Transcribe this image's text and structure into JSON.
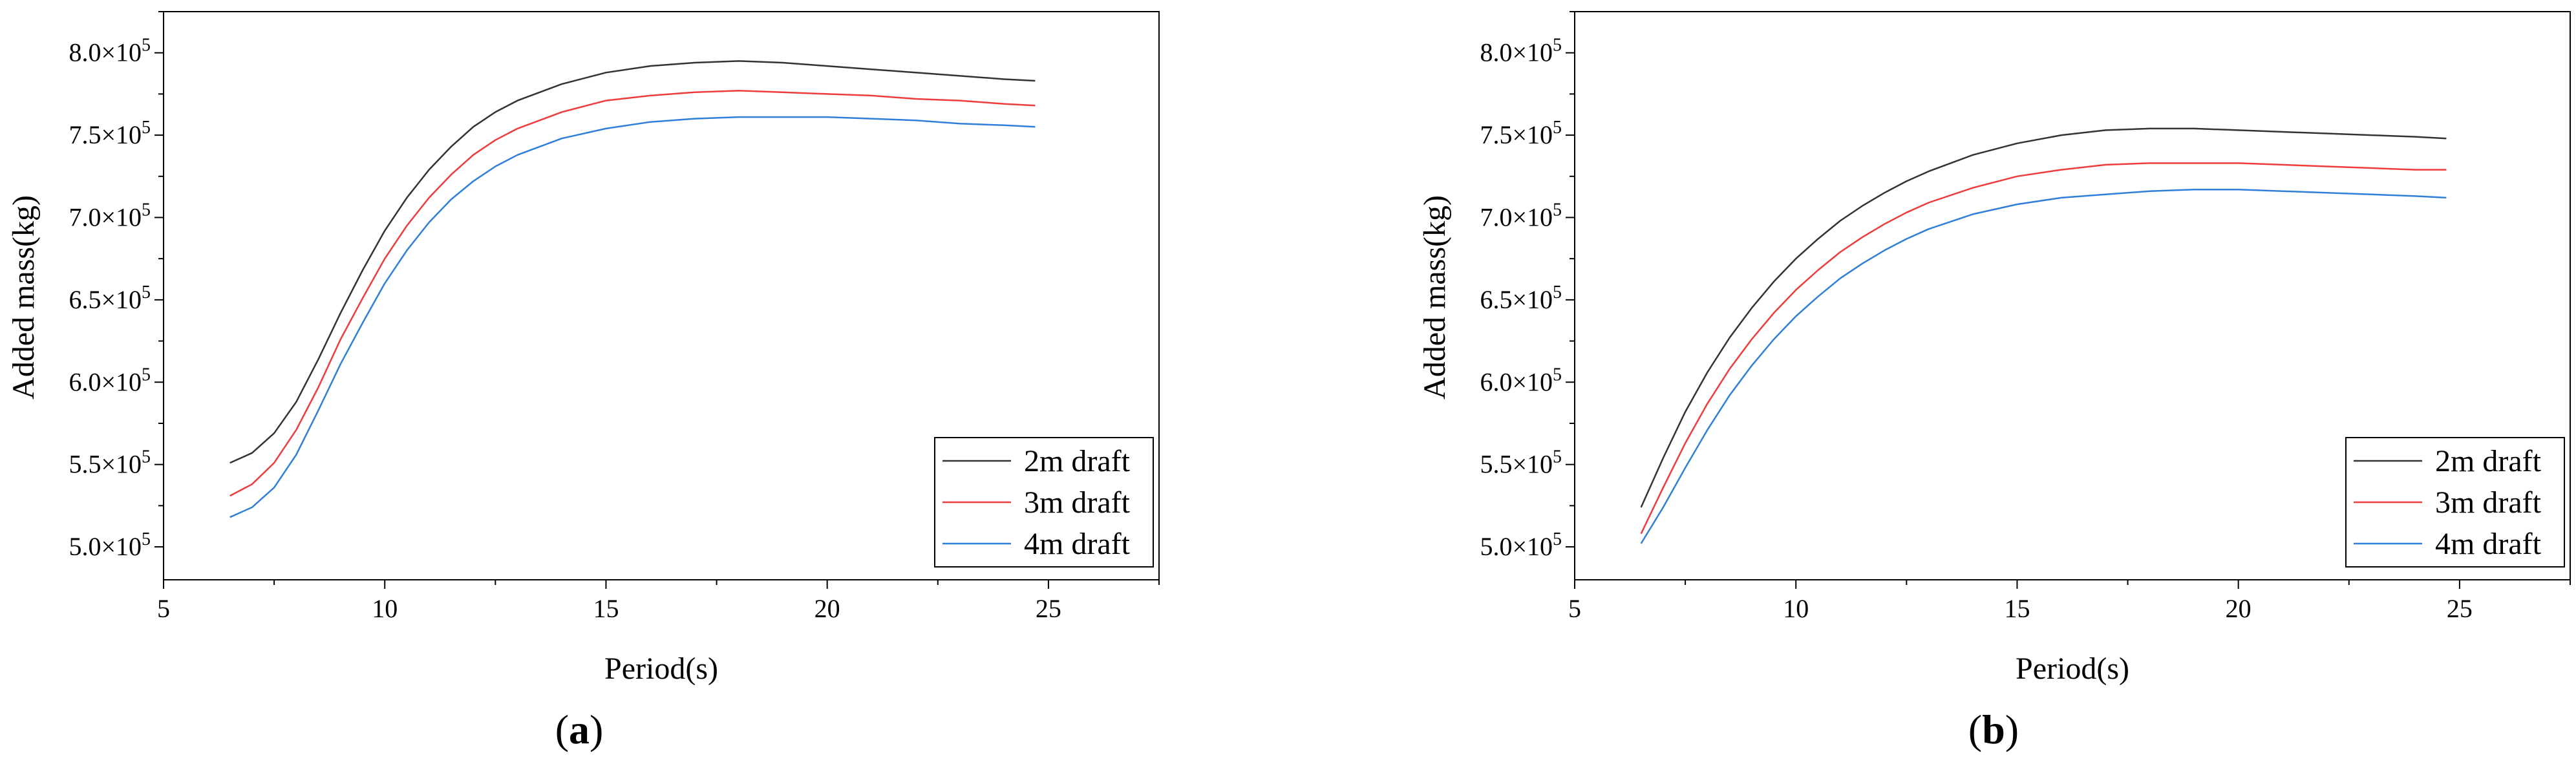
{
  "chart_data": [
    {
      "type": "line",
      "panel_label": "a",
      "xlabel": "Period(s)",
      "ylabel": "Added mass(kg)",
      "xlim": [
        5,
        27.5
      ],
      "ylim": [
        480000,
        825000
      ],
      "x_ticks": [
        5,
        10,
        15,
        20,
        25
      ],
      "x_tick_labels": [
        "5",
        "10",
        "15",
        "20",
        "25"
      ],
      "y_ticks": [
        500000,
        550000,
        600000,
        650000,
        700000,
        750000,
        800000
      ],
      "y_tick_labels": [
        {
          "mantissa": "5.0×10",
          "exponent": "5"
        },
        {
          "mantissa": "5.5×10",
          "exponent": "5"
        },
        {
          "mantissa": "6.0×10",
          "exponent": "5"
        },
        {
          "mantissa": "6.5×10",
          "exponent": "5"
        },
        {
          "mantissa": "7.0×10",
          "exponent": "5"
        },
        {
          "mantissa": "7.5×10",
          "exponent": "5"
        },
        {
          "mantissa": "8.0×10",
          "exponent": "5"
        }
      ],
      "grid": false,
      "legend_position": "bottom-right",
      "x": [
        6.5,
        7,
        7.5,
        8,
        8.5,
        9,
        9.5,
        10,
        10.5,
        11,
        11.5,
        12,
        12.5,
        13,
        14,
        15,
        16,
        17,
        18,
        19,
        20,
        21,
        22,
        23,
        24,
        24.7
      ],
      "series": [
        {
          "name": "2m draft",
          "color": "#333333",
          "values": [
            551000,
            557000,
            569000,
            588000,
            614000,
            642000,
            668000,
            692000,
            712000,
            729000,
            743000,
            755000,
            764000,
            771000,
            781000,
            788000,
            792000,
            794000,
            795000,
            794000,
            792000,
            790000,
            788000,
            786000,
            784000,
            783000
          ]
        },
        {
          "name": "3m draft",
          "color": "#ee3b3b",
          "values": [
            531000,
            538000,
            551000,
            571000,
            597000,
            626000,
            651000,
            675000,
            695000,
            712000,
            726000,
            738000,
            747000,
            754000,
            764000,
            771000,
            774000,
            776000,
            777000,
            776000,
            775000,
            774000,
            772000,
            771000,
            769000,
            768000
          ]
        },
        {
          "name": "4m draft",
          "color": "#2f7fd8",
          "values": [
            518000,
            524000,
            536000,
            556000,
            583000,
            611000,
            636000,
            660000,
            680000,
            697000,
            711000,
            722000,
            731000,
            738000,
            748000,
            754000,
            758000,
            760000,
            761000,
            761000,
            761000,
            760000,
            759000,
            757000,
            756000,
            755000
          ]
        }
      ]
    },
    {
      "type": "line",
      "panel_label": "b",
      "xlabel": "Period(s)",
      "ylabel": "Added mass(kg)",
      "xlim": [
        5,
        27.5
      ],
      "ylim": [
        480000,
        825000
      ],
      "x_ticks": [
        5,
        10,
        15,
        20,
        25
      ],
      "x_tick_labels": [
        "5",
        "10",
        "15",
        "20",
        "25"
      ],
      "y_ticks": [
        500000,
        550000,
        600000,
        650000,
        700000,
        750000,
        800000
      ],
      "y_tick_labels": [
        {
          "mantissa": "5.0×10",
          "exponent": "5"
        },
        {
          "mantissa": "5.5×10",
          "exponent": "5"
        },
        {
          "mantissa": "6.0×10",
          "exponent": "5"
        },
        {
          "mantissa": "6.5×10",
          "exponent": "5"
        },
        {
          "mantissa": "7.0×10",
          "exponent": "5"
        },
        {
          "mantissa": "7.5×10",
          "exponent": "5"
        },
        {
          "mantissa": "8.0×10",
          "exponent": "5"
        }
      ],
      "grid": false,
      "legend_position": "bottom-right",
      "x": [
        6.5,
        7,
        7.5,
        8,
        8.5,
        9,
        9.5,
        10,
        10.5,
        11,
        11.5,
        12,
        12.5,
        13,
        14,
        15,
        16,
        17,
        18,
        19,
        20,
        21,
        22,
        23,
        24,
        24.7
      ],
      "series": [
        {
          "name": "2m draft",
          "color": "#333333",
          "values": [
            524000,
            554000,
            582000,
            606000,
            627000,
            645000,
            661000,
            675000,
            687000,
            698000,
            707000,
            715000,
            722000,
            728000,
            738000,
            745000,
            750000,
            753000,
            754000,
            754000,
            753000,
            752000,
            751000,
            750000,
            749000,
            748000
          ]
        },
        {
          "name": "3m draft",
          "color": "#ee3b3b",
          "values": [
            508000,
            536000,
            563000,
            587000,
            608000,
            626000,
            642000,
            656000,
            668000,
            679000,
            688000,
            696000,
            703000,
            709000,
            718000,
            725000,
            729000,
            732000,
            733000,
            733000,
            733000,
            732000,
            731000,
            730000,
            729000,
            729000
          ]
        },
        {
          "name": "4m draft",
          "color": "#2f7fd8",
          "values": [
            502000,
            524000,
            548000,
            571000,
            592000,
            610000,
            626000,
            640000,
            652000,
            663000,
            672000,
            680000,
            687000,
            693000,
            702000,
            708000,
            712000,
            714000,
            716000,
            717000,
            717000,
            716000,
            715000,
            714000,
            713000,
            712000
          ]
        }
      ]
    }
  ]
}
